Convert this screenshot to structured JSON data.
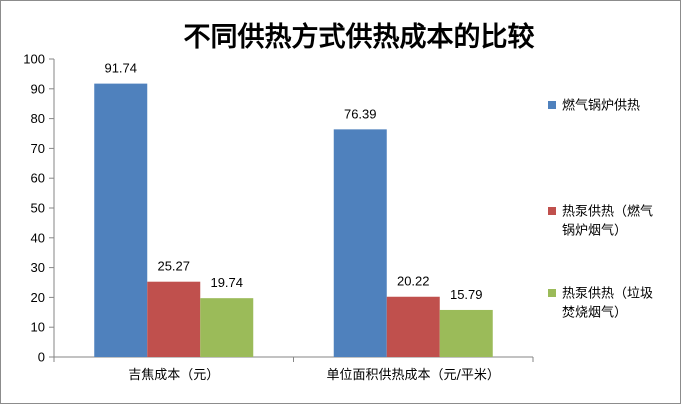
{
  "chart_data": {
    "type": "bar",
    "title": "不同供热方式供热成本的比较",
    "xlabel": "",
    "ylabel": "",
    "categories": [
      "吉焦成本（元）",
      "单位面积供热成本（元/平米）"
    ],
    "series": [
      {
        "name": "燃气锅炉供热",
        "color": "#4f81bd",
        "values": [
          91.74,
          76.39
        ]
      },
      {
        "name": "热泵供热（燃气锅炉烟气）",
        "color": "#c0504d",
        "values": [
          25.27,
          20.22
        ]
      },
      {
        "name": "热泵供热（垃圾焚烧烟气）",
        "color": "#9bbb59",
        "values": [
          19.74,
          15.79
        ]
      }
    ],
    "ylim": [
      0,
      100
    ],
    "yticks": [
      0,
      10,
      20,
      30,
      40,
      50,
      60,
      70,
      80,
      90,
      100
    ],
    "grid": false,
    "legend_position": "right",
    "data_labels": true
  }
}
